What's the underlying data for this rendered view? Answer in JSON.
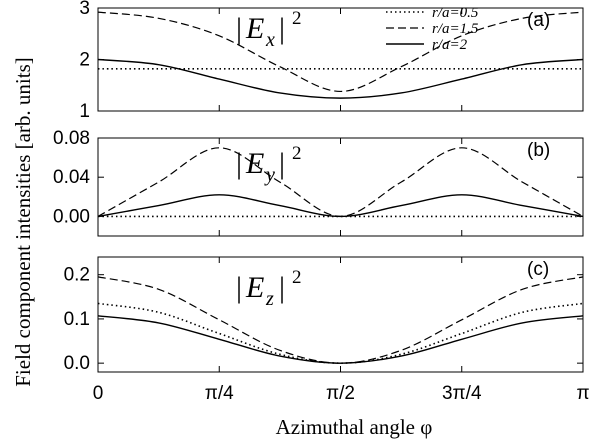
{
  "chart_data": {
    "type": "line",
    "xlabel": "Azimuthal angle φ",
    "ylabel": "Field component intensities [arb. units]",
    "xlim": [
      0,
      3.14159265
    ],
    "xticks": [
      {
        "value": 0,
        "label": "0"
      },
      {
        "value": 0.78539816,
        "label": "π/4"
      },
      {
        "value": 1.57079633,
        "label": "π/2"
      },
      {
        "value": 2.35619449,
        "label": "3π/4"
      },
      {
        "value": 3.14159265,
        "label": "π"
      }
    ],
    "legend": {
      "placement": "top-right",
      "entries": [
        {
          "label": "r/a=0.5",
          "style": "dotted"
        },
        {
          "label": "r/a=1.5",
          "style": "dashed"
        },
        {
          "label": "r/a=2",
          "style": "solid"
        }
      ]
    },
    "panels": [
      {
        "letter": "(a)",
        "component": "x",
        "ylim": [
          1,
          3
        ],
        "yticks": [
          "1",
          "2",
          "3"
        ],
        "series": [
          {
            "name": "r/a=0.5",
            "style": "dotted",
            "x": [
              0,
              0.3927,
              0.7854,
              1.1781,
              1.5708,
              1.9635,
              2.3562,
              2.7489,
              3.1416
            ],
            "values": [
              1.82,
              1.82,
              1.82,
              1.82,
              1.82,
              1.82,
              1.82,
              1.82,
              1.82
            ]
          },
          {
            "name": "r/a=1.5",
            "style": "dashed",
            "x": [
              0,
              0.3927,
              0.7854,
              1.1781,
              1.5708,
              1.9635,
              2.3562,
              2.7489,
              3.1416
            ],
            "values": [
              2.92,
              2.8,
              2.46,
              1.86,
              1.38,
              1.86,
              2.46,
              2.8,
              2.92
            ]
          },
          {
            "name": "r/a=2",
            "style": "solid",
            "x": [
              0,
              0.3927,
              0.7854,
              1.1781,
              1.5708,
              1.9635,
              2.3562,
              2.7489,
              3.1416
            ],
            "values": [
              2.0,
              1.9,
              1.62,
              1.35,
              1.25,
              1.35,
              1.62,
              1.9,
              2.0
            ]
          }
        ]
      },
      {
        "letter": "(b)",
        "component": "y",
        "ylim": [
          -0.02,
          0.08
        ],
        "yticks": [
          "0.00",
          "0.04",
          "0.08"
        ],
        "series": [
          {
            "name": "r/a=0.5",
            "style": "dotted",
            "x": [
              0,
              0.3927,
              0.7854,
              1.1781,
              1.5708,
              1.9635,
              2.3562,
              2.7489,
              3.1416
            ],
            "values": [
              0,
              0,
              0,
              0,
              0,
              0,
              0,
              0,
              0
            ]
          },
          {
            "name": "r/a=1.5",
            "style": "dashed",
            "x": [
              0,
              0.3927,
              0.7854,
              1.1781,
              1.5708,
              1.9635,
              2.3562,
              2.7489,
              3.1416
            ],
            "values": [
              0.0,
              0.035,
              0.07,
              0.035,
              0.0,
              0.035,
              0.07,
              0.035,
              0.0
            ]
          },
          {
            "name": "r/a=2",
            "style": "solid",
            "x": [
              0,
              0.3927,
              0.7854,
              1.1781,
              1.5708,
              1.9635,
              2.3562,
              2.7489,
              3.1416
            ],
            "values": [
              0.0,
              0.011,
              0.022,
              0.011,
              0.0,
              0.011,
              0.022,
              0.011,
              0.0
            ]
          }
        ]
      },
      {
        "letter": "(c)",
        "component": "z",
        "ylim": [
          -0.02,
          0.24
        ],
        "yticks": [
          "0.0",
          "0.1",
          "0.2"
        ],
        "series": [
          {
            "name": "r/a=0.5",
            "style": "dotted",
            "x": [
              0,
              0.3927,
              0.7854,
              1.1781,
              1.5708,
              1.9635,
              2.3562,
              2.7489,
              3.1416
            ],
            "values": [
              0.135,
              0.115,
              0.067,
              0.02,
              0.0,
              0.02,
              0.067,
              0.115,
              0.135
            ]
          },
          {
            "name": "r/a=1.5",
            "style": "dashed",
            "x": [
              0,
              0.3927,
              0.7854,
              1.1781,
              1.5708,
              1.9635,
              2.3562,
              2.7489,
              3.1416
            ],
            "values": [
              0.195,
              0.167,
              0.098,
              0.029,
              0.0,
              0.029,
              0.098,
              0.167,
              0.195
            ]
          },
          {
            "name": "r/a=2",
            "style": "solid",
            "x": [
              0,
              0.3927,
              0.7854,
              1.1781,
              1.5708,
              1.9635,
              2.3562,
              2.7489,
              3.1416
            ],
            "values": [
              0.107,
              0.091,
              0.054,
              0.016,
              0.0,
              0.016,
              0.054,
              0.091,
              0.107
            ]
          }
        ]
      }
    ]
  }
}
